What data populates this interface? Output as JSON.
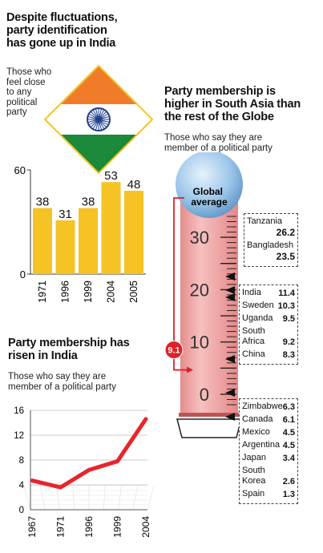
{
  "panel_id": {
    "title_lines": [
      "Despite fluctuations,",
      "party identification",
      "has gone up in India"
    ],
    "subtitle_lines": [
      "Those who",
      "feel close",
      "to any",
      "political",
      "party"
    ],
    "colors": {
      "bar": "#f5c324",
      "flag_saffron": "#f07c2a",
      "flag_green": "#1a8a3a",
      "flag_chakra": "#1f3f8f"
    }
  },
  "panel_member_india": {
    "title_lines": [
      "Party membership has",
      "risen in India"
    ],
    "subtitle_lines": [
      "Those who say they are",
      "member of a political party"
    ],
    "colors": {
      "line": "#e8252b"
    }
  },
  "panel_globe": {
    "title_lines": [
      "Party membership is",
      "higher in South Asia than",
      "the rest of the Globe"
    ],
    "subtitle_lines": [
      "Those who say they are",
      "member of a political party"
    ],
    "global_average_label_lines": [
      "Global",
      "average"
    ],
    "global_average_value": "9.1",
    "colors": {
      "tube": "#f0a6a6",
      "bulb": "#9cc6ea",
      "marker": "#e0202a"
    }
  },
  "chart_data": [
    {
      "type": "bar",
      "categories": [
        "1971",
        "1996",
        "1999",
        "2004",
        "2005"
      ],
      "values": [
        38,
        31,
        38,
        53,
        48
      ],
      "ylim": [
        0,
        60
      ],
      "yticks": [
        0,
        60
      ],
      "title": "Despite fluctuations, party identification has gone up in India"
    },
    {
      "type": "line",
      "x": [
        "1967",
        "1971",
        "1996",
        "1999",
        "2004"
      ],
      "values": [
        4.7,
        3.6,
        6.4,
        7.8,
        14.6
      ],
      "ylim": [
        0,
        16
      ],
      "yticks": [
        0,
        4,
        8,
        12,
        16
      ],
      "grid": true,
      "title": "Party membership has risen in India"
    },
    {
      "type": "thermometer",
      "ylim": [
        -2,
        34
      ],
      "yticks": [
        0,
        10,
        20,
        30
      ],
      "global_average": 9.1,
      "title": "Party membership is higher in South Asia than the rest of the Globe",
      "groups": [
        {
          "entries": [
            {
              "name": "Tanzania",
              "value": "26.2"
            },
            {
              "name": "Bangladesh",
              "value": "23.5"
            }
          ]
        },
        {
          "entries": [
            {
              "name": "India",
              "value": "11.4"
            },
            {
              "name": "Sweden",
              "value": "10.3"
            },
            {
              "name": "Uganda",
              "value": "9.5"
            },
            {
              "name": "South Africa",
              "value": "9.2"
            },
            {
              "name": "China",
              "value": "8.3"
            }
          ]
        },
        {
          "entries": [
            {
              "name": "Zimbabwe",
              "value": "6.3"
            },
            {
              "name": "Canada",
              "value": "6.1"
            },
            {
              "name": "Mexico",
              "value": "4.5"
            },
            {
              "name": "Argentina",
              "value": "4.5"
            },
            {
              "name": "Japan",
              "value": "3.4"
            },
            {
              "name": "South Korea",
              "value": "2.6"
            },
            {
              "name": "Spain",
              "value": "1.3"
            }
          ]
        }
      ]
    }
  ]
}
